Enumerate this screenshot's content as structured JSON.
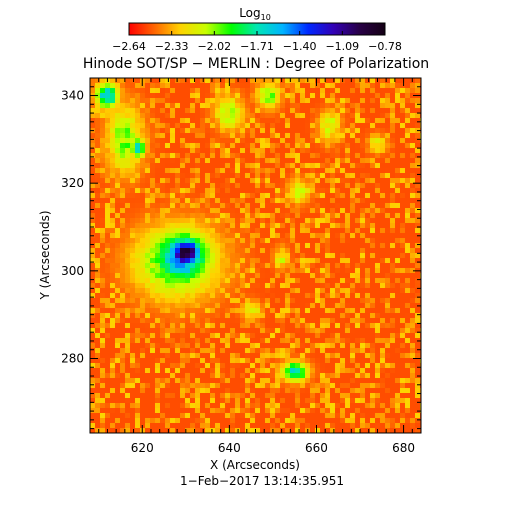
{
  "chart_data": {
    "type": "heatmap",
    "title": "Hinode SOT/SP − MERLIN : Degree of Polarization",
    "xlabel": "X (Arcseconds)",
    "ylabel": "Y (Arcseconds)",
    "timestamp": "1−Feb−2017 13:14:35.951",
    "xlim": [
      608,
      684
    ],
    "ylim": [
      263,
      344
    ],
    "x_ticks": [
      620,
      640,
      660,
      680
    ],
    "y_ticks": [
      280,
      300,
      320,
      340
    ],
    "x_tick_labels": [
      "620",
      "640",
      "660",
      "680"
    ],
    "y_tick_labels": [
      "280",
      "300",
      "320",
      "340"
    ],
    "colorbar": {
      "label_main": "Log",
      "label_sub": "10",
      "range": [
        -2.64,
        -0.78
      ],
      "ticks": [
        -2.64,
        -2.33,
        -2.02,
        -1.71,
        -1.4,
        -1.09,
        -0.78
      ],
      "tick_labels": [
        "−2.64",
        "−2.33",
        "−2.02",
        "−1.71",
        "−1.40",
        "−1.09",
        "−0.78"
      ],
      "colors": [
        "#ff0000",
        "#ff6600",
        "#ffd200",
        "#c8ff00",
        "#00ff00",
        "#00e6b4",
        "#00b4ff",
        "#0028ff",
        "#3200b4",
        "#280046",
        "#140014"
      ]
    },
    "features": [
      {
        "kind": "spot",
        "x": 630,
        "y": 304,
        "rx": 4.5,
        "ry": 4.0,
        "value": -0.82
      },
      {
        "kind": "halo",
        "x": 629,
        "y": 303,
        "rx": 8.0,
        "ry": 7.5,
        "value": -1.45
      },
      {
        "kind": "halo",
        "x": 628,
        "y": 302,
        "rx": 11.5,
        "ry": 9.5,
        "value": -1.85
      },
      {
        "kind": "patch",
        "x": 616,
        "y": 330,
        "rx": 5.0,
        "ry": 9.0,
        "value": -2.0
      },
      {
        "kind": "patch",
        "x": 612,
        "y": 340,
        "rx": 3.0,
        "ry": 3.5,
        "value": -1.55
      },
      {
        "kind": "patch",
        "x": 619,
        "y": 328,
        "rx": 2.0,
        "ry": 2.5,
        "value": -1.6
      },
      {
        "kind": "patch",
        "x": 640,
        "y": 336,
        "rx": 4.0,
        "ry": 4.5,
        "value": -2.05
      },
      {
        "kind": "patch",
        "x": 649,
        "y": 340,
        "rx": 3.0,
        "ry": 3.5,
        "value": -1.95
      },
      {
        "kind": "patch",
        "x": 656,
        "y": 318,
        "rx": 3.0,
        "ry": 3.0,
        "value": -2.05
      },
      {
        "kind": "patch",
        "x": 655,
        "y": 277,
        "rx": 3.5,
        "ry": 2.5,
        "value": -1.6
      },
      {
        "kind": "patch",
        "x": 663,
        "y": 333,
        "rx": 3.0,
        "ry": 4.0,
        "value": -2.1
      },
      {
        "kind": "patch",
        "x": 674,
        "y": 329,
        "rx": 2.5,
        "ry": 2.5,
        "value": -2.15
      },
      {
        "kind": "patch",
        "x": 645,
        "y": 291,
        "rx": 2.5,
        "ry": 2.5,
        "value": -2.1
      },
      {
        "kind": "patch",
        "x": 652,
        "y": 303,
        "rx": 2.0,
        "ry": 3.0,
        "value": -2.15
      }
    ],
    "background_value": -2.5,
    "noise_amplitude": 0.25,
    "grid": false
  }
}
